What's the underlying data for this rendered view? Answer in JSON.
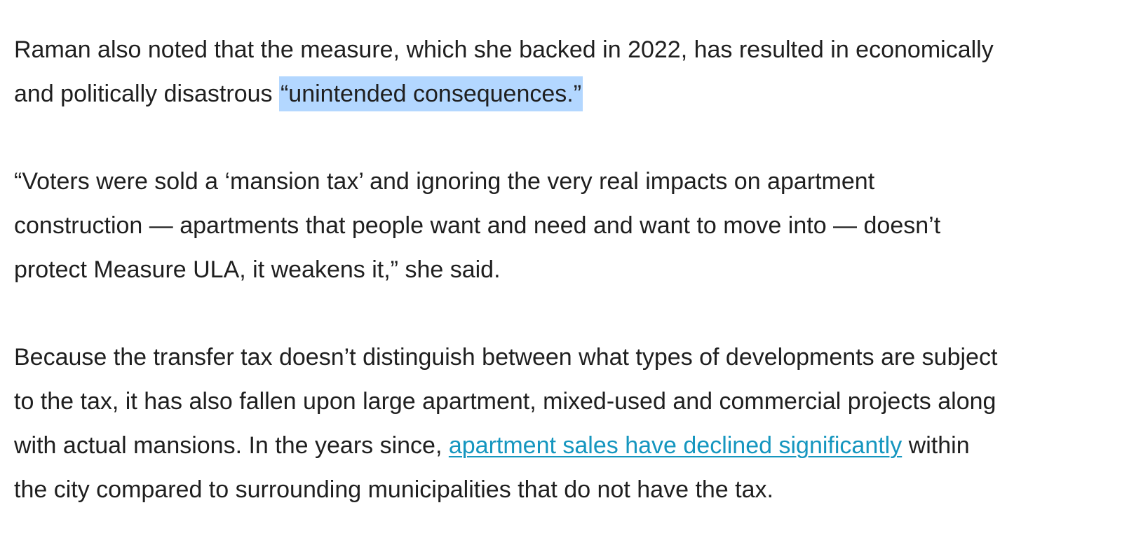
{
  "article": {
    "paragraphs": [
      {
        "lines": [
          "Raman also noted that the measure, which she backed in 2022, has resulted in economically",
          "and politically disastrous "
        ],
        "highlight": "“unintended consequences.”"
      },
      {
        "lines": [
          "“Voters were sold a ‘mansion tax’ and ignoring the very real impacts on apartment",
          "construction — apartments that people want and need and want to move into — doesn’t",
          "protect Measure ULA, it weakens it,” she said."
        ]
      },
      {
        "lines": [
          "Because the transfer tax doesn’t distinguish between what types of developments are subject",
          "to the tax, it has also fallen upon large apartment, mixed-used and commercial projects along",
          "with actual mansions. In the years since, "
        ],
        "link_text": "apartment sales have declined significantly",
        "after_link": " within",
        "last_line": "the city compared to surrounding municipalities that do not have the tax."
      }
    ],
    "colors": {
      "text": "#1f1f1f",
      "link": "#1596bf",
      "selection_highlight": "#b3d7ff"
    }
  }
}
